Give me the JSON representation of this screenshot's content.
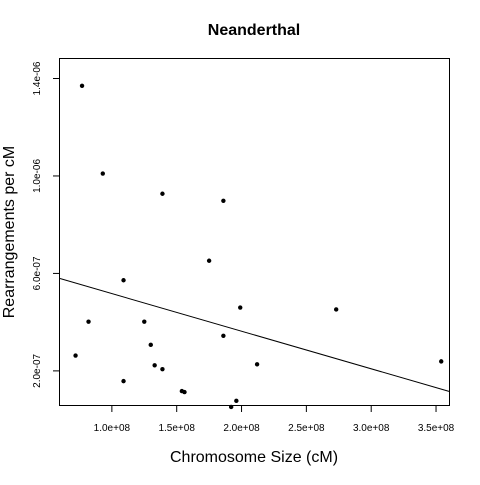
{
  "chart_data": {
    "type": "scatter",
    "title": "Neanderthal",
    "xlabel": "Chromosome Size (cM)",
    "ylabel": "Rearrangements per cM",
    "xlim": [
      60000000,
      360000000
    ],
    "ylim": [
      6e-08,
      1.48e-06
    ],
    "x_ticks": [
      100000000,
      150000000,
      200000000,
      250000000,
      300000000,
      350000000
    ],
    "x_tick_labels": [
      "1.0e+08",
      "1.5e+08",
      "2.0e+08",
      "2.5e+08",
      "3.0e+08",
      "3.5e+08"
    ],
    "y_ticks": [
      2e-07,
      6e-07,
      1e-06,
      1.4e-06
    ],
    "y_tick_labels": [
      "2.0e-07",
      "6.0e-07",
      "1.0e-06",
      "1.4e-06"
    ],
    "grid": false,
    "legend": "none",
    "series": [
      {
        "points": [
          {
            "x": 77000000,
            "y": 1.37e-06
          },
          {
            "x": 93000000,
            "y": 1.01e-06
          },
          {
            "x": 72000000,
            "y": 2.63e-07
          },
          {
            "x": 82000000,
            "y": 4.02e-07
          },
          {
            "x": 109000000,
            "y": 5.72e-07
          },
          {
            "x": 109000000,
            "y": 1.58e-07
          },
          {
            "x": 125000000,
            "y": 4.02e-07
          },
          {
            "x": 130000000,
            "y": 3.07e-07
          },
          {
            "x": 133000000,
            "y": 2.23e-07
          },
          {
            "x": 139000000,
            "y": 9.27e-07
          },
          {
            "x": 139000000,
            "y": 2.07e-07
          },
          {
            "x": 154000000,
            "y": 1.17e-07
          },
          {
            "x": 156000000,
            "y": 1.13e-07
          },
          {
            "x": 175000000,
            "y": 6.52e-07
          },
          {
            "x": 186000000,
            "y": 8.98e-07
          },
          {
            "x": 186000000,
            "y": 3.44e-07
          },
          {
            "x": 192000000,
            "y": 5.2e-08
          },
          {
            "x": 196000000,
            "y": 7.7e-08
          },
          {
            "x": 199000000,
            "y": 4.6e-07
          },
          {
            "x": 212000000,
            "y": 2.27e-07
          },
          {
            "x": 273000000,
            "y": 4.52e-07
          },
          {
            "x": 354000000,
            "y": 2.39e-07
          }
        ]
      }
    ],
    "fit_line": {
      "x": [
        60000000,
        360000000
      ],
      "y": [
        5.79e-07,
        1.16e-07
      ]
    }
  }
}
